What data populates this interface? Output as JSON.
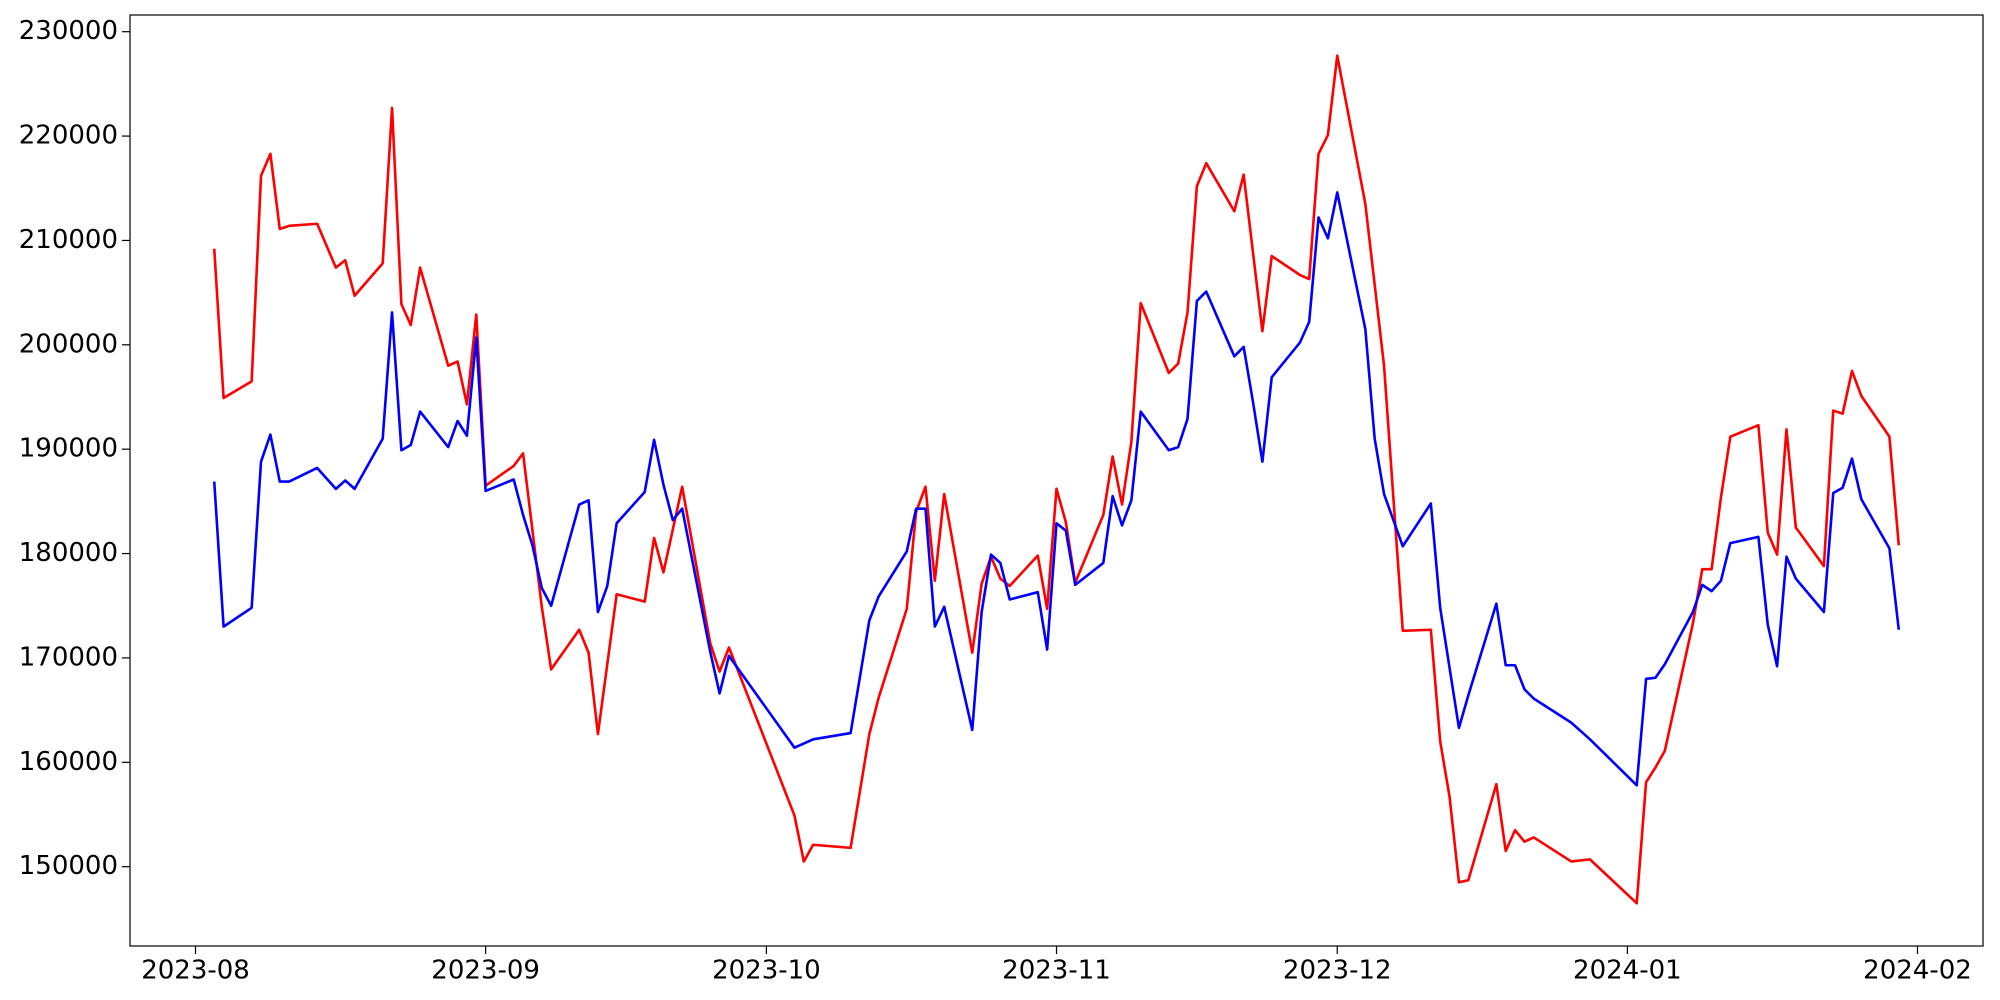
{
  "chart_data": {
    "type": "line",
    "xlim": [
      "2023-07-25",
      "2024-02-08"
    ],
    "xticks": [
      "2023-08",
      "2023-09",
      "2023-10",
      "2023-11",
      "2023-12",
      "2024-01",
      "2024-02"
    ],
    "ylim": [
      142400,
      231600
    ],
    "yticks": [
      150000,
      160000,
      170000,
      180000,
      190000,
      200000,
      210000,
      220000,
      230000
    ],
    "grid": false,
    "series": [
      {
        "color": "#ff0000",
        "x": [
          "2023-08-03",
          "2023-08-04",
          "2023-08-07",
          "2023-08-08",
          "2023-08-09",
          "2023-08-10",
          "2023-08-11",
          "2023-08-14",
          "2023-08-16",
          "2023-08-17",
          "2023-08-18",
          "2023-08-21",
          "2023-08-22",
          "2023-08-23",
          "2023-08-24",
          "2023-08-25",
          "2023-08-28",
          "2023-08-29",
          "2023-08-30",
          "2023-08-31",
          "2023-09-01",
          "2023-09-04",
          "2023-09-05",
          "2023-09-07",
          "2023-09-08",
          "2023-09-11",
          "2023-09-12",
          "2023-09-13",
          "2023-09-15",
          "2023-09-18",
          "2023-09-19",
          "2023-09-20",
          "2023-09-22",
          "2023-09-25",
          "2023-09-26",
          "2023-09-27",
          "2023-10-04",
          "2023-10-05",
          "2023-10-06",
          "2023-10-10",
          "2023-10-12",
          "2023-10-13",
          "2023-10-16",
          "2023-10-17",
          "2023-10-18",
          "2023-10-19",
          "2023-10-20",
          "2023-10-23",
          "2023-10-24",
          "2023-10-25",
          "2023-10-26",
          "2023-10-27",
          "2023-10-30",
          "2023-10-31",
          "2023-11-01",
          "2023-11-02",
          "2023-11-03",
          "2023-11-06",
          "2023-11-07",
          "2023-11-08",
          "2023-11-09",
          "2023-11-10",
          "2023-11-13",
          "2023-11-14",
          "2023-11-15",
          "2023-11-16",
          "2023-11-17",
          "2023-11-20",
          "2023-11-21",
          "2023-11-23",
          "2023-11-24",
          "2023-11-27",
          "2023-11-28",
          "2023-11-29",
          "2023-11-30",
          "2023-12-01",
          "2023-12-04",
          "2023-12-06",
          "2023-12-08",
          "2023-12-11",
          "2023-12-12",
          "2023-12-13",
          "2023-12-14",
          "2023-12-15",
          "2023-12-18",
          "2023-12-19",
          "2023-12-20",
          "2023-12-21",
          "2023-12-22",
          "2023-12-26",
          "2023-12-27",
          "2023-12-28",
          "2024-01-02",
          "2024-01-03",
          "2024-01-04",
          "2024-01-05",
          "2024-01-08",
          "2024-01-09",
          "2024-01-10",
          "2024-01-11",
          "2024-01-12",
          "2024-01-15",
          "2024-01-16",
          "2024-01-17",
          "2024-01-18",
          "2024-01-19",
          "2024-01-22",
          "2024-01-23",
          "2024-01-24",
          "2024-01-25",
          "2024-01-26",
          "2024-01-29",
          "2024-01-30"
        ],
        "values": [
          209200,
          194900,
          196500,
          216200,
          218300,
          211100,
          211400,
          211600,
          207400,
          208100,
          204700,
          207800,
          222700,
          203900,
          201900,
          207400,
          198000,
          198400,
          194300,
          202900,
          186500,
          188400,
          189600,
          174900,
          168900,
          172700,
          170500,
          162700,
          176100,
          175400,
          181500,
          178200,
          186400,
          171400,
          168700,
          171000,
          154900,
          150500,
          152100,
          151800,
          162700,
          166200,
          174700,
          184000,
          186400,
          177400,
          185700,
          170500,
          177100,
          179700,
          177600,
          176900,
          179800,
          174700,
          186200,
          183000,
          177200,
          183700,
          189300,
          184700,
          190700,
          204000,
          197300,
          198200,
          203100,
          215200,
          217400,
          212800,
          216300,
          201300,
          208500,
          206700,
          206300,
          218300,
          220100,
          227700,
          213500,
          198000,
          172600,
          172700,
          162000,
          156700,
          148500,
          148700,
          157900,
          151500,
          153500,
          152400,
          152800,
          150500,
          150600,
          150700,
          146500,
          158100,
          159500,
          161100,
          173300,
          178500,
          178500,
          185400,
          191200,
          192300,
          182000,
          179900,
          191900,
          182500,
          178800,
          193700,
          193400,
          197500,
          195100,
          191200,
          180800
        ]
      },
      {
        "color": "#0000ff",
        "x": [
          "2023-08-03",
          "2023-08-04",
          "2023-08-07",
          "2023-08-08",
          "2023-08-09",
          "2023-08-10",
          "2023-08-11",
          "2023-08-14",
          "2023-08-16",
          "2023-08-17",
          "2023-08-18",
          "2023-08-21",
          "2023-08-22",
          "2023-08-23",
          "2023-08-24",
          "2023-08-25",
          "2023-08-28",
          "2023-08-29",
          "2023-08-30",
          "2023-08-31",
          "2023-09-01",
          "2023-09-04",
          "2023-09-05",
          "2023-09-06",
          "2023-09-07",
          "2023-09-08",
          "2023-09-11",
          "2023-09-12",
          "2023-09-13",
          "2023-09-14",
          "2023-09-15",
          "2023-09-18",
          "2023-09-19",
          "2023-09-20",
          "2023-09-21",
          "2023-09-22",
          "2023-09-25",
          "2023-09-26",
          "2023-09-27",
          "2023-10-04",
          "2023-10-06",
          "2023-10-10",
          "2023-10-12",
          "2023-10-13",
          "2023-10-16",
          "2023-10-17",
          "2023-10-18",
          "2023-10-19",
          "2023-10-20",
          "2023-10-23",
          "2023-10-24",
          "2023-10-25",
          "2023-10-26",
          "2023-10-27",
          "2023-10-30",
          "2023-10-31",
          "2023-11-01",
          "2023-11-02",
          "2023-11-03",
          "2023-11-06",
          "2023-11-07",
          "2023-11-08",
          "2023-11-09",
          "2023-11-10",
          "2023-11-13",
          "2023-11-14",
          "2023-11-15",
          "2023-11-16",
          "2023-11-17",
          "2023-11-20",
          "2023-11-21",
          "2023-11-22",
          "2023-11-23",
          "2023-11-24",
          "2023-11-27",
          "2023-11-28",
          "2023-11-29",
          "2023-11-30",
          "2023-12-01",
          "2023-12-04",
          "2023-12-05",
          "2023-12-06",
          "2023-12-08",
          "2023-12-11",
          "2023-12-12",
          "2023-12-14",
          "2023-12-15",
          "2023-12-18",
          "2023-12-19",
          "2023-12-20",
          "2023-12-21",
          "2023-12-22",
          "2023-12-26",
          "2023-12-28",
          "2024-01-02",
          "2024-01-03",
          "2024-01-04",
          "2024-01-05",
          "2024-01-08",
          "2024-01-09",
          "2024-01-10",
          "2024-01-11",
          "2024-01-12",
          "2024-01-15",
          "2024-01-16",
          "2024-01-17",
          "2024-01-18",
          "2024-01-19",
          "2024-01-22",
          "2024-01-23",
          "2024-01-24",
          "2024-01-25",
          "2024-01-26",
          "2024-01-29",
          "2024-01-30"
        ],
        "values": [
          186900,
          173000,
          174800,
          188800,
          191400,
          186900,
          186900,
          188200,
          186200,
          187000,
          186200,
          191000,
          203100,
          189900,
          190400,
          193600,
          190200,
          192700,
          191300,
          200700,
          186000,
          187100,
          183700,
          180800,
          176700,
          175000,
          184700,
          185100,
          174400,
          176900,
          182900,
          185900,
          190900,
          186600,
          183200,
          184300,
          170600,
          166600,
          170200,
          161400,
          162200,
          162800,
          173600,
          175900,
          180200,
          184300,
          184300,
          173000,
          174900,
          163100,
          174400,
          179900,
          179100,
          175600,
          176300,
          170800,
          182900,
          182200,
          177000,
          179100,
          185500,
          182700,
          185100,
          193600,
          189900,
          190200,
          192900,
          204200,
          205100,
          198900,
          199800,
          194500,
          188800,
          196900,
          200200,
          202200,
          212200,
          210200,
          214600,
          201500,
          191000,
          185700,
          180700,
          184800,
          174800,
          163300,
          166400,
          175200,
          169300,
          169300,
          167000,
          166100,
          163800,
          162200,
          157800,
          168000,
          168100,
          169400,
          174400,
          177000,
          176400,
          177400,
          181000,
          181600,
          173200,
          169200,
          179700,
          177600,
          174400,
          185800,
          186300,
          189100,
          185200,
          180500,
          172700
        ]
      }
    ]
  }
}
